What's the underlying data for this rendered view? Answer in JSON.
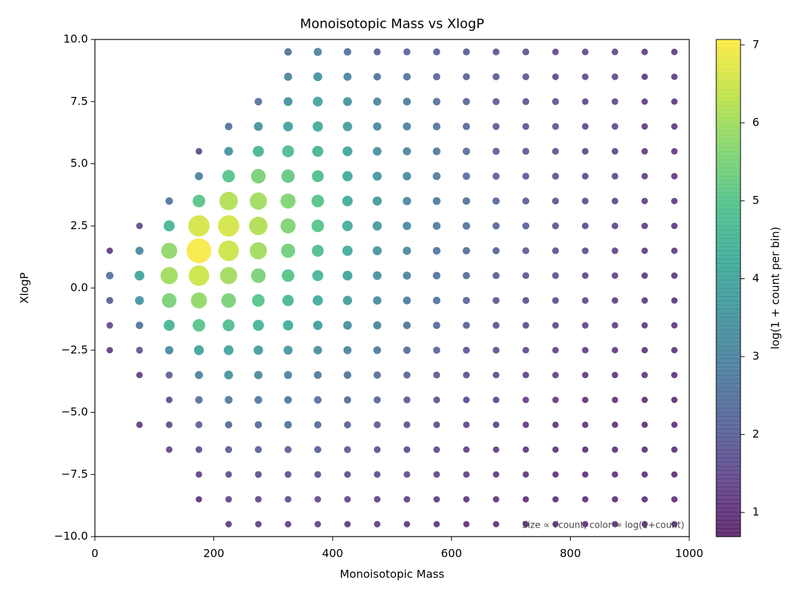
{
  "chart_data": {
    "type": "scatter",
    "title": "Monoisotopic Mass vs XlogP",
    "x_label": "Monoisotopic Mass",
    "y_label": "XlogP",
    "colorbar_label": "log(1 + count per bin)",
    "note": "Size ∝ √count, color = log(1+count)",
    "colormap": "viridis",
    "x": [
      25,
      75,
      125,
      175,
      225,
      275,
      325,
      375,
      425,
      475,
      525,
      575,
      625,
      675,
      725,
      775,
      825,
      875,
      925,
      975
    ],
    "y": [
      9.5,
      8.5,
      7.5,
      6.5,
      5.5,
      4.5,
      3.5,
      2.5,
      1.5,
      0.5,
      -0.5,
      -1.5,
      -2.5,
      -3.5,
      -4.5,
      -5.5,
      -6.5,
      -7.5,
      -8.5,
      -9.5
    ],
    "z": [
      [
        null,
        null,
        null,
        null,
        null,
        null,
        2.5,
        3,
        2.5,
        2,
        2,
        2,
        2,
        1.8,
        1.8,
        1.5,
        1.5,
        1.5,
        1.2,
        1.2
      ],
      [
        null,
        null,
        null,
        null,
        null,
        null,
        3,
        3.5,
        3,
        2.5,
        2.5,
        2.2,
        2,
        2,
        1.8,
        1.5,
        1.5,
        1.5,
        1.2,
        1.2
      ],
      [
        null,
        null,
        null,
        null,
        null,
        2.5,
        3.5,
        4,
        3.5,
        3,
        2.8,
        2.5,
        2.2,
        2,
        1.8,
        1.8,
        1.5,
        1.5,
        1.2,
        1.2
      ],
      [
        null,
        null,
        null,
        null,
        2.5,
        3.5,
        4,
        4.2,
        3.8,
        3.2,
        3,
        2.6,
        2.3,
        2,
        1.8,
        1.8,
        1.5,
        1.5,
        1.2,
        1.2
      ],
      [
        null,
        null,
        null,
        1.5,
        3.5,
        4.5,
        4.8,
        4.5,
        4,
        3.4,
        3,
        2.7,
        2.4,
        2.1,
        1.9,
        1.8,
        1.5,
        1.5,
        1.2,
        1.2
      ],
      [
        null,
        null,
        null,
        3,
        5,
        5.5,
        5.2,
        4.8,
        4.2,
        3.6,
        3.2,
        2.8,
        2.4,
        2.1,
        1.9,
        1.8,
        1.6,
        1.5,
        1.3,
        1.2
      ],
      [
        null,
        null,
        2.5,
        5,
        6.2,
        6,
        5.6,
        5,
        4.3,
        3.7,
        3.2,
        2.8,
        2.5,
        2.2,
        2,
        1.8,
        1.6,
        1.5,
        1.3,
        1.2
      ],
      [
        null,
        1.5,
        4.5,
        6.6,
        6.6,
        6.2,
        5.6,
        5,
        4.3,
        3.7,
        3.2,
        2.8,
        2.5,
        2.2,
        2,
        1.8,
        1.6,
        1.5,
        1.3,
        1.2
      ],
      [
        1.2,
        3,
        5.8,
        7,
        6.5,
        6,
        5.4,
        4.8,
        4.2,
        3.6,
        3.1,
        2.7,
        2.4,
        2.1,
        1.9,
        1.7,
        1.6,
        1.4,
        1.3,
        1.2
      ],
      [
        2.5,
        4,
        6,
        6.5,
        6,
        5.5,
        5,
        4.5,
        4,
        3.4,
        3,
        2.6,
        2.3,
        2,
        1.8,
        1.7,
        1.5,
        1.4,
        1.2,
        1.2
      ],
      [
        2,
        3.5,
        5.5,
        5.8,
        5.5,
        5,
        4.6,
        4.2,
        3.7,
        3.2,
        2.8,
        2.5,
        2.2,
        1.9,
        1.7,
        1.6,
        1.5,
        1.3,
        1.2,
        1.1
      ],
      [
        1.5,
        2.5,
        4.5,
        5,
        4.8,
        4.5,
        4.2,
        3.8,
        3.4,
        3,
        2.6,
        2.3,
        2,
        1.8,
        1.6,
        1.5,
        1.4,
        1.3,
        1.2,
        1.1
      ],
      [
        1.2,
        1.8,
        3.2,
        4,
        4,
        3.8,
        3.6,
        3.3,
        3,
        2.7,
        2.4,
        2.1,
        1.9,
        1.7,
        1.5,
        1.4,
        1.3,
        1.2,
        1.1,
        1.1
      ],
      [
        null,
        1.2,
        2,
        3,
        3.5,
        3.2,
        3,
        2.8,
        2.6,
        2.4,
        2.1,
        1.9,
        1.7,
        1.5,
        1.4,
        1.3,
        1.2,
        1.1,
        1.1,
        1
      ],
      [
        null,
        null,
        1.5,
        2.5,
        2.8,
        2.7,
        2.6,
        2.5,
        2.3,
        2.1,
        1.9,
        1.7,
        1.5,
        1.4,
        1.3,
        1.2,
        1.1,
        1.1,
        1,
        1
      ],
      [
        null,
        1.2,
        1.5,
        2,
        2.3,
        2.3,
        2.6,
        2.3,
        2.1,
        1.9,
        1.7,
        1.6,
        1.4,
        1.3,
        1.2,
        1.1,
        1.1,
        1,
        1,
        1
      ],
      [
        null,
        null,
        1.3,
        1.6,
        2,
        2,
        2,
        2,
        1.9,
        1.7,
        1.6,
        1.5,
        1.3,
        1.2,
        1.1,
        1.1,
        1,
        1,
        1,
        1
      ],
      [
        null,
        null,
        null,
        1.3,
        1.6,
        1.7,
        1.7,
        1.7,
        1.6,
        1.6,
        1.5,
        1.4,
        1.3,
        1.2,
        1.1,
        1,
        1,
        1,
        1,
        1
      ],
      [
        null,
        null,
        null,
        1,
        1.4,
        1.5,
        1.5,
        1.5,
        1.4,
        1.4,
        1.3,
        1.2,
        1.1,
        1.1,
        1,
        1,
        1,
        1,
        1,
        1
      ],
      [
        null,
        null,
        null,
        null,
        1.2,
        1.3,
        1.3,
        1.3,
        1.2,
        1.2,
        1.1,
        1.1,
        1,
        1,
        1,
        1,
        1,
        1,
        1,
        1
      ]
    ],
    "xlim": [
      0,
      1000
    ],
    "xticks": [
      0,
      200,
      400,
      600,
      800,
      1000
    ],
    "ylim": [
      -10,
      10
    ],
    "yticks": [
      {
        "value": -10,
        "label": "−10.0"
      },
      {
        "value": -7.5,
        "label": "−7.5"
      },
      {
        "value": -5,
        "label": "−5.0"
      },
      {
        "value": -2.5,
        "label": "−2.5"
      },
      {
        "value": 0,
        "label": "0.0"
      },
      {
        "value": 2.5,
        "label": "2.5"
      },
      {
        "value": 5,
        "label": "5.0"
      },
      {
        "value": 7.5,
        "label": "7.5"
      },
      {
        "value": 10,
        "label": "10.0"
      }
    ],
    "clim": [
      0.69,
      7.07
    ],
    "cticks": [
      1,
      2,
      3,
      4,
      5,
      6,
      7
    ]
  }
}
